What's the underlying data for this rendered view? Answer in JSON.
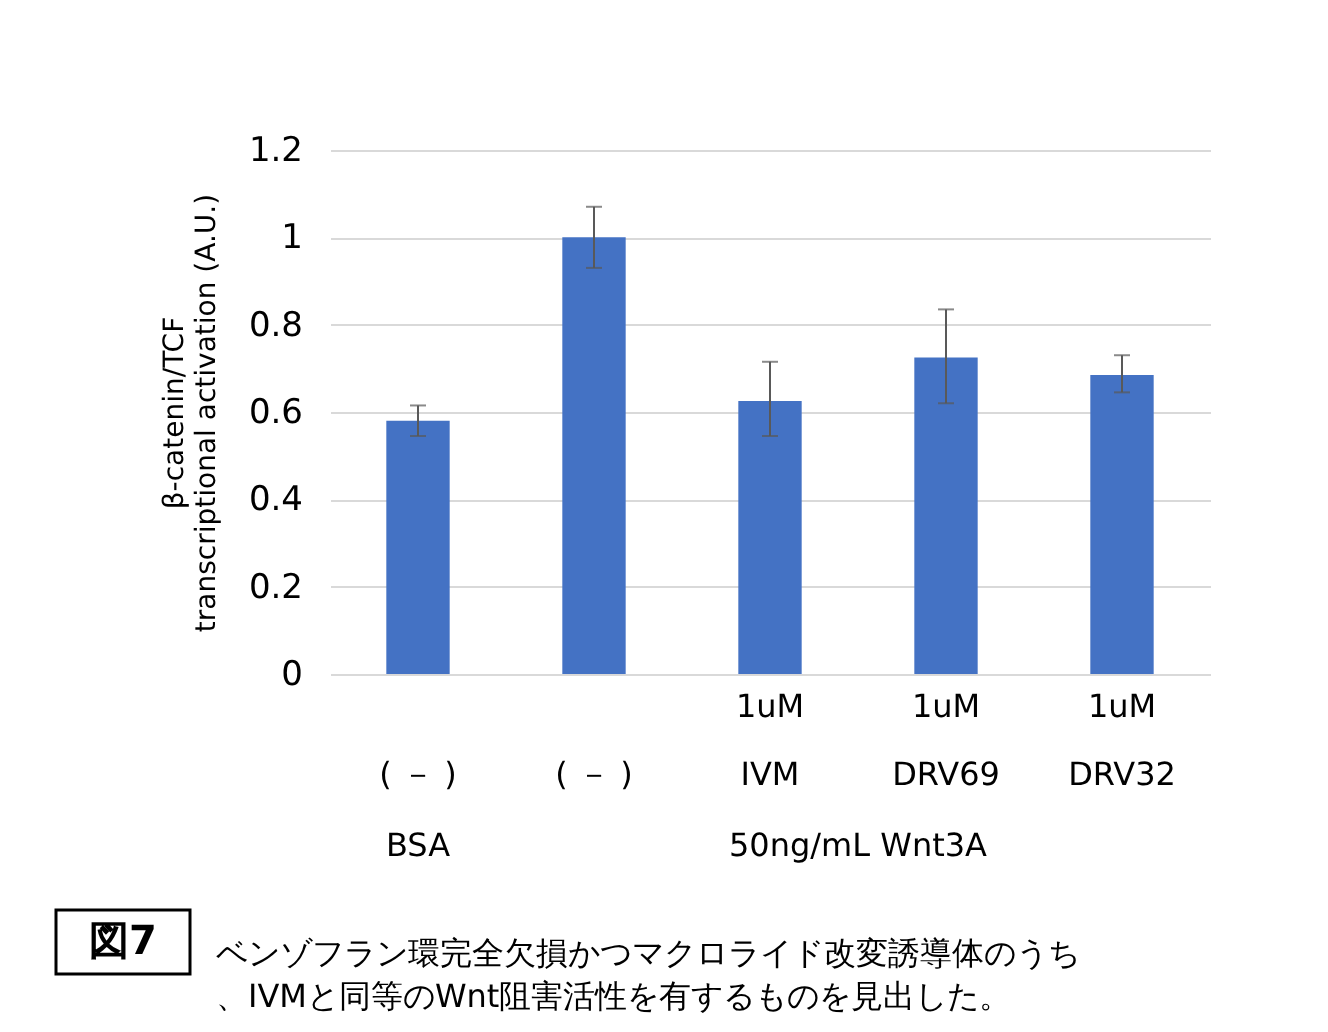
{
  "chart_data": {
    "type": "bar",
    "ylabel": "β-catenin/TCF\ntranscriptional activation (A.U.)",
    "categories": [
      "( － )",
      "( － )",
      "1uM\nIVM",
      "1uM\nDRV69",
      "1uM\nDRV32"
    ],
    "values": [
      0.58,
      1.0,
      0.625,
      0.725,
      0.685
    ],
    "errors": [
      [
        0.545,
        0.615
      ],
      0.07,
      [
        0.545,
        0.715
      ],
      [
        0.62,
        0.835
      ],
      [
        0.645,
        0.73
      ]
    ],
    "color": "#4472c4",
    "ylim": [
      0,
      1.2
    ],
    "yticks": [
      0,
      0.2,
      0.4,
      0.6,
      0.8,
      1,
      1.2
    ],
    "grid": "y",
    "annotations": [
      "図7",
      "ベンゾフラン環完全欠損かつマクロライド改変誘導体のうち、IVMと同等のWnt阻害活性を有するものを見出した。",
      "BSA",
      "50ng/mL Wnt3A"
    ]
  }
}
